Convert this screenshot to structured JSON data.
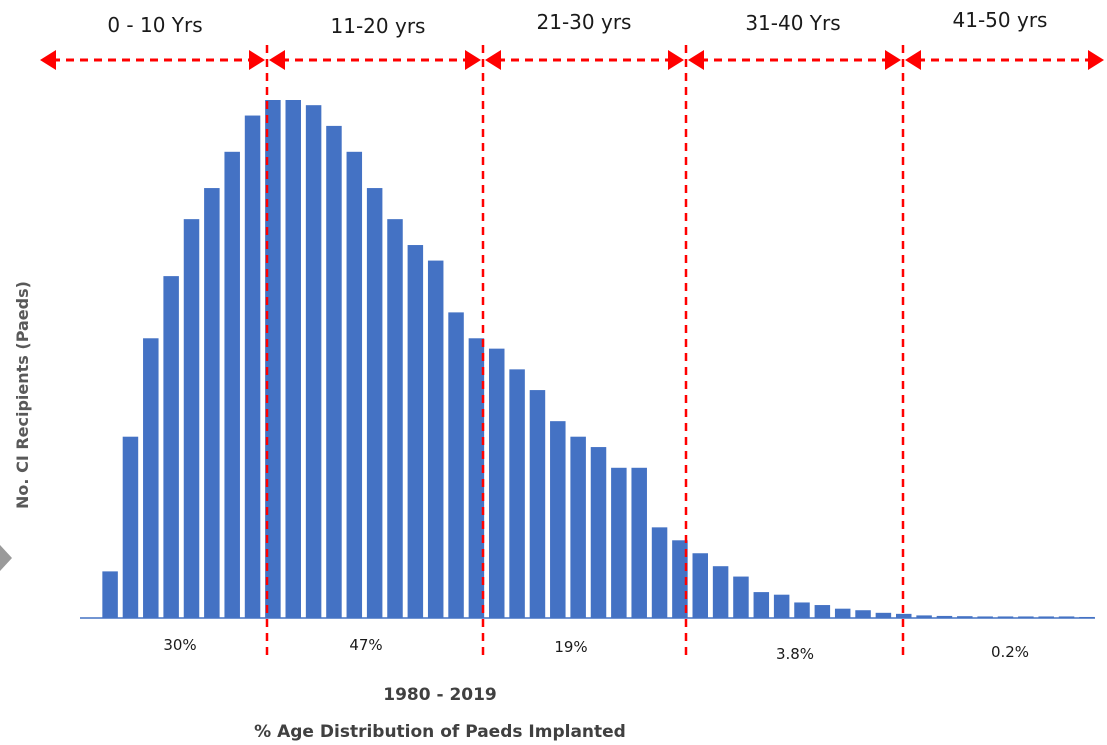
{
  "chart_data": {
    "type": "bar",
    "title": "",
    "ylabel": "No. CI Recipients (Paeds)",
    "xlabel_lines": [
      "1980 - 2019",
      "% Age Distribution of Paeds Implanted"
    ],
    "ylim": [
      0,
      100
    ],
    "bar_color": "#4472C4",
    "values": [
      0,
      9,
      35,
      54,
      66,
      77,
      83,
      90,
      97,
      100,
      100,
      99,
      95,
      90,
      83,
      77,
      72,
      69,
      59,
      54,
      52,
      48,
      44,
      38,
      35,
      33,
      29,
      29,
      17.5,
      15,
      12.5,
      10,
      8,
      5,
      4.5,
      3,
      2.5,
      1.8,
      1.5,
      1,
      0.8,
      0.5,
      0.4,
      0.35,
      0.3,
      0.3,
      0.3,
      0.3,
      0.3,
      0.2
    ],
    "age_ranges": [
      {
        "label": "0 - 10 Yrs",
        "percent": "30%"
      },
      {
        "label": "11-20 yrs",
        "percent": "47%"
      },
      {
        "label": "21-30 yrs",
        "percent": "19%"
      },
      {
        "label": "31-40 Yrs",
        "percent": "3.8%"
      },
      {
        "label": "41-50 yrs",
        "percent": "0.2%"
      }
    ],
    "divider_color": "#FF0000"
  }
}
